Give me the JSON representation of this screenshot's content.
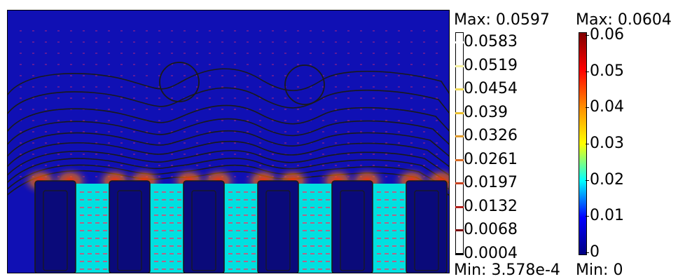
{
  "field_plot": {
    "background_color": "#1010b4",
    "conductor_color": "#00e0e0",
    "slot_block_color": "#0a0a7a",
    "contour_color": "#1a1a1a",
    "arrow_color": "#ff3366",
    "hotspot_color": "#ff2a00"
  },
  "contour_legend": {
    "max_label": "Max: 0.0597",
    "min_label": "Min: 3.578e-4",
    "levels": [
      "0.0583",
      "0.0519",
      "0.0454",
      "0.039",
      "0.0326",
      "0.0261",
      "0.0197",
      "0.0132",
      "0.0068",
      "0.0004"
    ],
    "level_colors": [
      "#ffffff",
      "#f7f2a0",
      "#f2dc58",
      "#ecc030",
      "#e09a2c",
      "#d86f28",
      "#c84422",
      "#b1201c",
      "#7a0e0e",
      "#000000"
    ]
  },
  "surface_legend": {
    "max_label": "Max: 0.0604",
    "min_label": "Min: 0",
    "ticks": [
      "0.06",
      "0.05",
      "0.04",
      "0.03",
      "0.02",
      "0.01",
      "0"
    ],
    "gradient_stops": [
      "#800000",
      "#ff0000",
      "#ff8c00",
      "#ffff00",
      "#00ffff",
      "#0000ff",
      "#000080"
    ]
  }
}
